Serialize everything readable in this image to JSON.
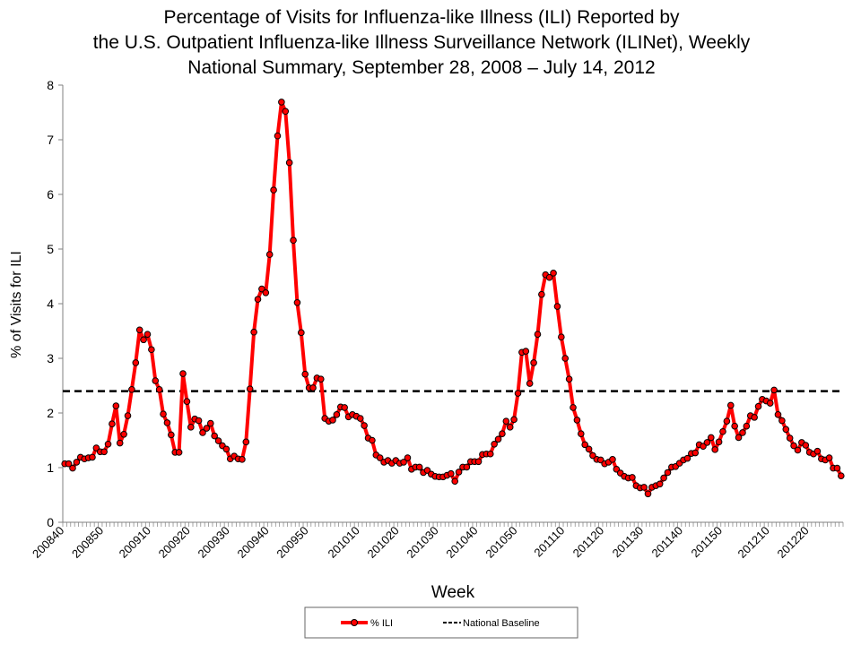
{
  "chart_data": {
    "type": "line",
    "title_lines": [
      "Percentage of Visits for Influenza-like Illness (ILI) Reported by",
      "the U.S. Outpatient Influenza-like Illness Surveillance Network (ILINet), Weekly",
      "National Summary, September 28, 2008 – July 14, 2012"
    ],
    "xlabel": "Week",
    "ylabel": "% of Visits for ILI",
    "ylim": [
      0,
      8
    ],
    "yticks": [
      0,
      1,
      2,
      3,
      4,
      5,
      6,
      7,
      8
    ],
    "xtick_labels": [
      "200840",
      "200850",
      "200910",
      "200920",
      "200930",
      "200940",
      "200950",
      "201010",
      "201020",
      "201030",
      "201040",
      "201050",
      "201110",
      "201120",
      "201130",
      "201140",
      "201150",
      "201210",
      "201220"
    ],
    "grid": false,
    "legend_position": "bottom",
    "x": [
      200840,
      200841,
      200842,
      200843,
      200844,
      200845,
      200846,
      200847,
      200848,
      200849,
      200850,
      200851,
      200852,
      200901,
      200902,
      200903,
      200904,
      200905,
      200906,
      200907,
      200908,
      200909,
      200910,
      200911,
      200912,
      200913,
      200914,
      200915,
      200916,
      200917,
      200918,
      200919,
      200920,
      200921,
      200922,
      200923,
      200924,
      200925,
      200926,
      200927,
      200928,
      200929,
      200930,
      200931,
      200932,
      200933,
      200934,
      200935,
      200936,
      200937,
      200938,
      200939,
      200940,
      200941,
      200942,
      200943,
      200944,
      200945,
      200946,
      200947,
      200948,
      200949,
      200950,
      200951,
      200952,
      200953,
      201001,
      201002,
      201003,
      201004,
      201005,
      201006,
      201007,
      201008,
      201009,
      201010,
      201011,
      201012,
      201013,
      201014,
      201015,
      201016,
      201017,
      201018,
      201019,
      201020,
      201021,
      201022,
      201023,
      201024,
      201025,
      201026,
      201027,
      201028,
      201029,
      201030,
      201031,
      201032,
      201033,
      201034,
      201035,
      201036,
      201037,
      201038,
      201039,
      201040,
      201041,
      201042,
      201043,
      201044,
      201045,
      201046,
      201047,
      201048,
      201049,
      201050,
      201051,
      201052,
      201101,
      201102,
      201103,
      201104,
      201105,
      201106,
      201107,
      201108,
      201109,
      201110,
      201111,
      201112,
      201113,
      201114,
      201115,
      201116,
      201117,
      201118,
      201119,
      201120,
      201121,
      201122,
      201123,
      201124,
      201125,
      201126,
      201127,
      201128,
      201129,
      201130,
      201131,
      201132,
      201133,
      201134,
      201135,
      201136,
      201137,
      201138,
      201139,
      201140,
      201141,
      201142,
      201143,
      201144,
      201145,
      201146,
      201147,
      201148,
      201149,
      201150,
      201151,
      201152,
      201201,
      201202,
      201203,
      201204,
      201205,
      201206,
      201207,
      201208,
      201209,
      201210,
      201211,
      201212,
      201213,
      201214,
      201215,
      201216,
      201217,
      201218,
      201219,
      201220,
      201221,
      201222,
      201223,
      201224,
      201225,
      201226,
      201227,
      201228
    ],
    "series": [
      {
        "name": "% ILI",
        "color": "#ff0000",
        "values": [
          1.07,
          1.07,
          0.99,
          1.1,
          1.19,
          1.16,
          1.18,
          1.19,
          1.36,
          1.29,
          1.29,
          1.43,
          1.8,
          2.13,
          1.45,
          1.61,
          1.95,
          2.43,
          2.92,
          3.52,
          3.34,
          3.44,
          3.16,
          2.59,
          2.43,
          1.98,
          1.82,
          1.6,
          1.28,
          1.28,
          2.72,
          2.21,
          1.74,
          1.89,
          1.86,
          1.64,
          1.72,
          1.81,
          1.58,
          1.49,
          1.4,
          1.34,
          1.16,
          1.21,
          1.16,
          1.15,
          1.47,
          2.44,
          3.48,
          4.08,
          4.27,
          4.2,
          4.9,
          6.08,
          7.07,
          7.69,
          7.52,
          6.58,
          5.16,
          4.02,
          3.47,
          2.71,
          2.46,
          2.46,
          2.64,
          2.62,
          1.9,
          1.85,
          1.87,
          1.97,
          2.11,
          2.1,
          1.93,
          1.97,
          1.94,
          1.9,
          1.77,
          1.54,
          1.5,
          1.23,
          1.18,
          1.1,
          1.13,
          1.08,
          1.13,
          1.08,
          1.1,
          1.18,
          0.97,
          1.01,
          1.01,
          0.91,
          0.95,
          0.88,
          0.84,
          0.83,
          0.83,
          0.86,
          0.89,
          0.75,
          0.92,
          1.01,
          1.01,
          1.11,
          1.11,
          1.11,
          1.24,
          1.25,
          1.25,
          1.43,
          1.52,
          1.62,
          1.85,
          1.74,
          1.88,
          2.36,
          3.11,
          3.13,
          2.54,
          2.92,
          3.44,
          4.17,
          4.53,
          4.48,
          4.56,
          3.95,
          3.39,
          3.0,
          2.62,
          2.1,
          1.87,
          1.62,
          1.42,
          1.34,
          1.22,
          1.15,
          1.14,
          1.07,
          1.1,
          1.15,
          0.97,
          0.9,
          0.84,
          0.81,
          0.82,
          0.67,
          0.63,
          0.64,
          0.52,
          0.64,
          0.67,
          0.7,
          0.81,
          0.91,
          1.01,
          1.02,
          1.08,
          1.14,
          1.17,
          1.26,
          1.27,
          1.42,
          1.39,
          1.46,
          1.55,
          1.33,
          1.47,
          1.66,
          1.85,
          2.14,
          1.76,
          1.55,
          1.64,
          1.76,
          1.95,
          1.92,
          2.12,
          2.25,
          2.22,
          2.18,
          2.42,
          1.97,
          1.86,
          1.7,
          1.54,
          1.4,
          1.32,
          1.46,
          1.41,
          1.28,
          1.25,
          1.3,
          1.16,
          1.14,
          1.18,
          0.99,
          0.99,
          0.85
        ]
      },
      {
        "name": "National Baseline",
        "color": "#000000",
        "style": "dashed",
        "constant": 2.4
      }
    ]
  }
}
